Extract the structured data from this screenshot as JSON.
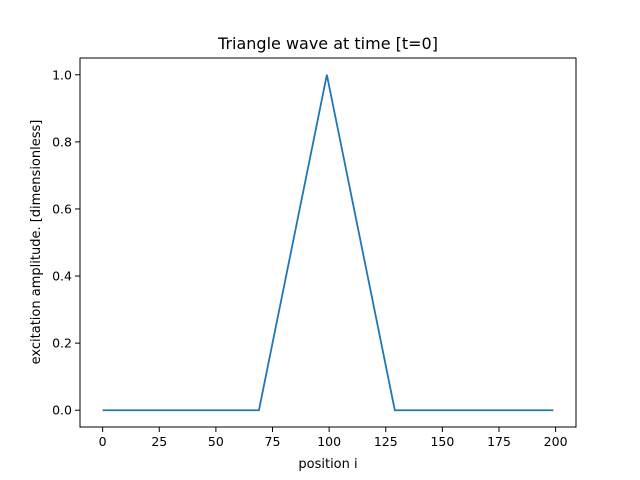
{
  "chart_data": {
    "type": "line",
    "title": "Triangle wave at time [t=0]",
    "xlabel": "position i",
    "ylabel": "excitation amplitude. [dimensionless]",
    "xlim": [
      -10,
      209
    ],
    "ylim": [
      -0.05,
      1.05
    ],
    "xticks": [
      0,
      25,
      50,
      75,
      100,
      125,
      150,
      175,
      200
    ],
    "yticks": [
      0.0,
      0.2,
      0.4,
      0.6,
      0.8,
      1.0
    ],
    "ytick_labels": [
      "0.0",
      "0.2",
      "0.4",
      "0.6",
      "0.8",
      "1.0"
    ],
    "grid": false,
    "series": [
      {
        "color": "#1f77b4",
        "x": [
          0,
          69,
          99,
          129,
          199
        ],
        "y": [
          0,
          0,
          1,
          0,
          0
        ]
      }
    ]
  }
}
